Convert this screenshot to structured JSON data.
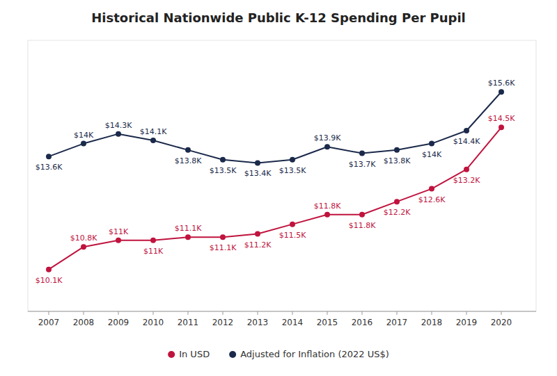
{
  "chart_data": {
    "type": "line",
    "title": "Historical Nationwide Public K-12 Spending Per Pupil",
    "x": [
      2007,
      2008,
      2009,
      2010,
      2011,
      2012,
      2013,
      2014,
      2015,
      2016,
      2017,
      2018,
      2019,
      2020
    ],
    "series": [
      {
        "name": "In USD",
        "color": "#c0133e",
        "marker": "circle",
        "values": [
          10.1,
          10.8,
          11.0,
          11.0,
          11.1,
          11.1,
          11.2,
          11.5,
          11.8,
          11.8,
          12.2,
          12.6,
          13.2,
          14.5
        ],
        "value_labels": [
          "$10.1K",
          "$10.8K",
          "$11K",
          "$11K",
          "$11.1K",
          "$11.1K",
          "$11.2K",
          "$11.5K",
          "$11.8K",
          "$11.8K",
          "$12.2K",
          "$12.6K",
          "$13.2K",
          "$14.5K"
        ]
      },
      {
        "name": "Adjusted for Inflation (2022 US$)",
        "color": "#1b2a4a",
        "marker": "circle",
        "values": [
          13.6,
          14.0,
          14.3,
          14.1,
          13.8,
          13.5,
          13.4,
          13.5,
          13.9,
          13.7,
          13.8,
          14.0,
          14.4,
          15.6
        ],
        "value_labels": [
          "$13.6K",
          "$14K",
          "$14.3K",
          "$14.1K",
          "$13.8K",
          "$13.5K",
          "$13.4K",
          "$13.5K",
          "$13.9K",
          "$13.7K",
          "$13.8K",
          "$14K",
          "$14.4K",
          "$15.6K"
        ]
      }
    ],
    "xlim": [
      2006.4,
      2021.0
    ],
    "xticks": [
      2007,
      2008,
      2009,
      2010,
      2011,
      2012,
      2013,
      2014,
      2015,
      2016,
      2017,
      2018,
      2019,
      2020
    ],
    "ylim": [
      8.8,
      17.2
    ],
    "tick_labels": "x",
    "grid": false,
    "legend": "bottom",
    "data_labels": true
  }
}
